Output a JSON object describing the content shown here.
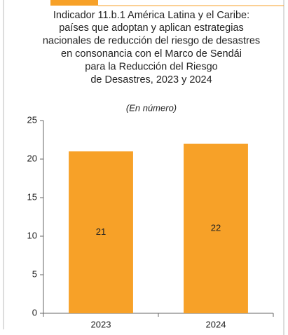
{
  "chart_data": {
    "type": "bar",
    "title": [
      "Indicador 11.b.1 América Latina y el Caribe:",
      "países que adoptan y aplican estrategias",
      "nacionales de reducción del riesgo de desastres",
      "en consonancia con el Marco de Sendái",
      "para la Reducción del Riesgo",
      "de Desastres, 2023 y 2024"
    ],
    "subtitle": "(En número)",
    "categories": [
      "2023",
      "2024"
    ],
    "values": [
      21,
      22
    ],
    "color": "#f7a128",
    "ylim": [
      0,
      25
    ],
    "yticks": [
      0,
      5,
      10,
      15,
      20,
      25
    ]
  }
}
